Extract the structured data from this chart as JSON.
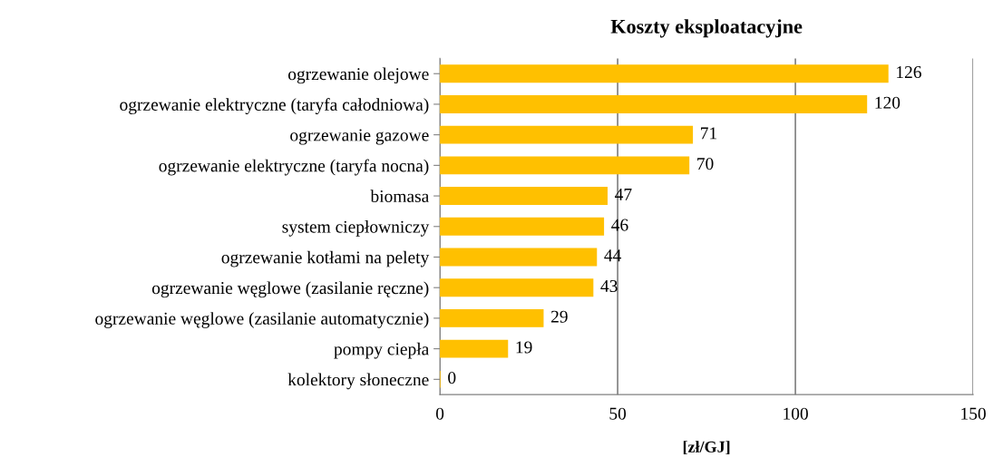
{
  "chart_data": {
    "type": "bar",
    "orientation": "horizontal",
    "title": "Koszty eksploatacyjne",
    "xlabel": "[zł/GJ]",
    "categories": [
      "ogrzewanie olejowe",
      "ogrzewanie elektryczne (taryfa całodniowa)",
      "ogrzewanie gazowe",
      "ogrzewanie elektryczne (taryfa nocna)",
      "biomasa",
      "system ciepłowniczy",
      "ogrzewanie kotłami na pelety",
      "ogrzewanie węglowe (zasilanie ręczne)",
      "ogrzewanie węglowe (zasilanie automatycznie)",
      "pompy ciepła",
      "kolektory słoneczne"
    ],
    "values": [
      126,
      120,
      71,
      70,
      47,
      46,
      44,
      43,
      29,
      19,
      0
    ],
    "color": "#ffc000",
    "xlim": [
      0,
      150
    ],
    "xticks": [
      0,
      50,
      100,
      150
    ],
    "grid": "x",
    "data_labels": true
  }
}
